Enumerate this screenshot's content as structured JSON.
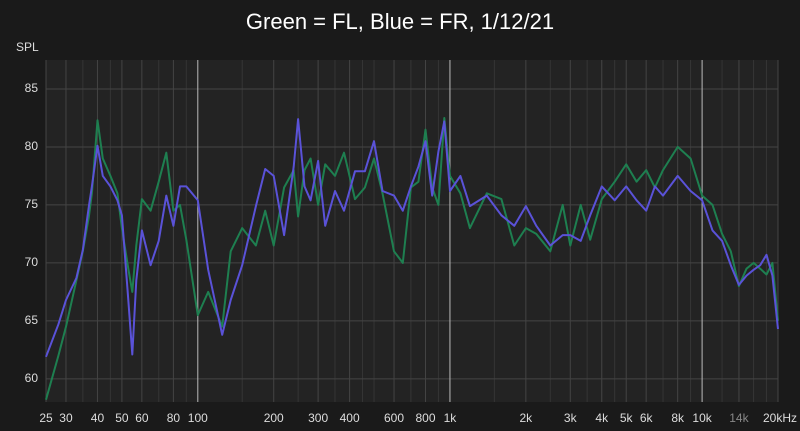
{
  "chart_data": {
    "type": "line",
    "title": "Green = FL, Blue = FR, 1/12/21",
    "y_label": "SPL",
    "x": [
      25,
      28,
      30,
      33,
      35,
      37,
      38,
      40,
      42,
      45,
      48,
      50,
      53,
      55,
      57,
      60,
      65,
      70,
      75,
      80,
      85,
      90,
      100,
      110,
      125,
      135,
      150,
      170,
      185,
      200,
      220,
      240,
      250,
      265,
      280,
      300,
      320,
      350,
      380,
      420,
      460,
      500,
      540,
      600,
      650,
      700,
      750,
      800,
      850,
      900,
      950,
      1000,
      1100,
      1200,
      1400,
      1600,
      1800,
      2000,
      2200,
      2500,
      2800,
      3000,
      3300,
      3600,
      4000,
      4500,
      5000,
      5500,
      6000,
      6500,
      7000,
      8000,
      9000,
      10000,
      11000,
      12000,
      13000,
      14000,
      15000,
      16000,
      17000,
      18000,
      19000,
      20000
    ],
    "series": [
      {
        "name": "FL",
        "color": "#1e7f50",
        "values": [
          58.2,
          62,
          64.5,
          68.5,
          71,
          74,
          76,
          82.3,
          79,
          77.5,
          76,
          73,
          69.5,
          67.5,
          71.5,
          75.5,
          74.5,
          77,
          79.5,
          74.5,
          75,
          72,
          65.5,
          67.5,
          64.5,
          71,
          73,
          71.5,
          74.5,
          71.5,
          76.5,
          78,
          74,
          78,
          79,
          75,
          78.5,
          77.5,
          79.5,
          75.5,
          76.5,
          79,
          76,
          71,
          70,
          76.5,
          77,
          81.5,
          76.5,
          75,
          82.5,
          77.5,
          76,
          73,
          76,
          75.5,
          71.5,
          73,
          72.5,
          71,
          75,
          71.5,
          75,
          72,
          75.5,
          77,
          78.5,
          77,
          78,
          76.5,
          78,
          80,
          79,
          75.8,
          75,
          72.5,
          71,
          68,
          69.5,
          70,
          69.5,
          69,
          70,
          65
        ]
      },
      {
        "name": "FR",
        "color": "#5a52d8",
        "values": [
          61.9,
          64.7,
          66.8,
          68.7,
          71.1,
          74.9,
          76.6,
          80.1,
          77.5,
          76.6,
          75.4,
          74.1,
          66.8,
          62.1,
          68.5,
          72.8,
          69.8,
          71.9,
          75.8,
          73.2,
          76.6,
          76.6,
          75.4,
          69.4,
          63.8,
          66.8,
          69.8,
          74.9,
          78.1,
          77.5,
          72.4,
          78.3,
          82.4,
          76.6,
          75.4,
          78.8,
          73.2,
          76.2,
          74.5,
          77.9,
          77.9,
          80.5,
          76.2,
          75.8,
          74.5,
          76.6,
          78.3,
          80.5,
          75.8,
          79.6,
          82.2,
          76.2,
          77.5,
          74.9,
          75.8,
          74.1,
          73.2,
          74.9,
          73.2,
          71.5,
          72.4,
          72.4,
          71.9,
          74.1,
          76.6,
          75.4,
          76.6,
          75.4,
          74.5,
          76.6,
          75.8,
          77.5,
          76.2,
          75.4,
          72.8,
          71.9,
          69.8,
          68.1,
          68.9,
          69.4,
          69.8,
          70.7,
          68.9,
          64.3
        ]
      }
    ],
    "log_x": true,
    "grid": true,
    "xlim": [
      25,
      20000
    ],
    "ylim": [
      58,
      87.5
    ],
    "xticks": [
      25,
      30,
      40,
      50,
      60,
      80,
      100,
      200,
      300,
      400,
      600,
      800,
      {
        "value": 1000,
        "label": "1k"
      },
      {
        "value": 2000,
        "label": "2k"
      },
      {
        "value": 3000,
        "label": "3k"
      },
      {
        "value": 4000,
        "label": "4k"
      },
      {
        "value": 5000,
        "label": "5k"
      },
      {
        "value": 6000,
        "label": "6k"
      },
      {
        "value": 8000,
        "label": "8k"
      },
      {
        "value": 10000,
        "label": "10k"
      },
      {
        "value": 14000,
        "label": "14k"
      },
      {
        "value": 20000,
        "label": "20kHz"
      }
    ],
    "xminorticks": [
      35,
      45,
      70,
      90,
      150,
      250,
      350,
      450,
      500,
      700,
      900,
      1500,
      2500,
      3500,
      4500,
      7000,
      9000,
      12000,
      16000,
      18000
    ],
    "yticks": [
      60,
      65,
      70,
      75,
      80,
      85
    ]
  }
}
